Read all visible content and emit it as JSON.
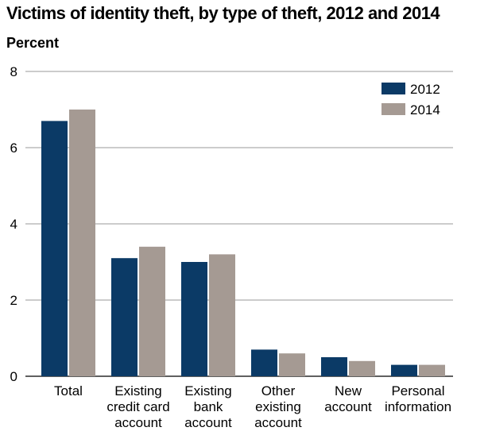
{
  "chart_data": {
    "type": "bar",
    "title": "Victims of identity theft, by type of theft, 2012 and 2014",
    "ylabel": "Percent",
    "xlabel": "",
    "ylim": [
      0,
      8
    ],
    "yticks": [
      0,
      2,
      4,
      6,
      8
    ],
    "grid": true,
    "legend": "top-right",
    "categories": [
      [
        "Total"
      ],
      [
        "Existing",
        "credit card",
        "account"
      ],
      [
        "Existing",
        "bank",
        "account"
      ],
      [
        "Other",
        "existing",
        "account"
      ],
      [
        "New",
        "account"
      ],
      [
        "Personal",
        "information"
      ]
    ],
    "series": [
      {
        "name": "2012",
        "color": "#0b3a66",
        "values": [
          6.7,
          3.1,
          3.0,
          0.7,
          0.5,
          0.3
        ]
      },
      {
        "name": "2014",
        "color": "#a59a93",
        "values": [
          7.0,
          3.4,
          3.2,
          0.6,
          0.4,
          0.3
        ]
      }
    ]
  }
}
